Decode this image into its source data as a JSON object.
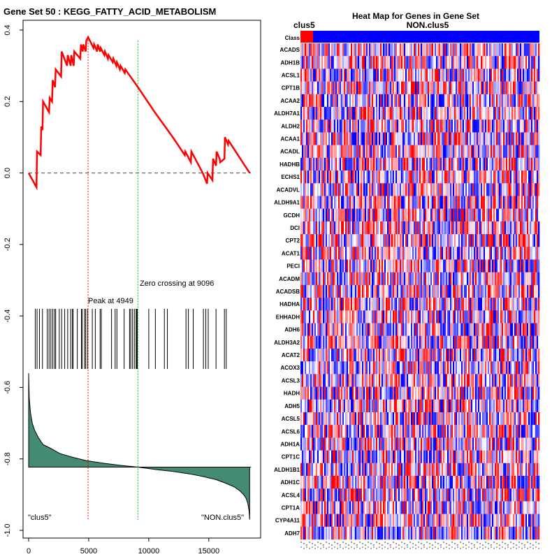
{
  "left_panel": {
    "title": "Gene Set  50 : KEGG_FATTY_ACID_METABOLISM",
    "peak_label": "Peak at 4949",
    "zero_label": "Zero crossing at 9096",
    "left_label": "\"clus5\"",
    "right_label": "\"NON.clus5\""
  },
  "right_panel": {
    "title": "Heat Map for Genes in Gene Set",
    "class_row_label": "Class",
    "group_a": "clus5",
    "group_b": "NON.clus5"
  },
  "colors": {
    "es_line": "#ff0000",
    "peak_line": "#ff0000",
    "zero_line": "#00bb00",
    "metric_fill": "#458b74",
    "class_a": "#ff0000",
    "class_b": "#0000ff"
  },
  "chart_data": {
    "type": "line",
    "title": "Gene Set  50 : KEGG_FATTY_ACID_METABOLISM",
    "xlim": [
      0,
      18500
    ],
    "ylim": [
      -1.0,
      0.4
    ],
    "x_ticks": [
      0,
      5000,
      10000,
      15000
    ],
    "y_ticks": [
      0.4,
      0.2,
      0.0,
      -0.2,
      -0.4,
      -0.6,
      -0.8,
      -1.0
    ],
    "x_tick_labels": [
      "0",
      "5000",
      "10000",
      "15000"
    ],
    "y_tick_labels": [
      "0.4",
      "0.2",
      "0.0",
      "-0.2",
      "-0.4",
      "-0.6",
      "-0.8",
      "-1.0"
    ],
    "peak_x": 4949,
    "zero_crossing_x": 9096,
    "enrichment_score": {
      "x": [
        0,
        650,
        700,
        1000,
        1050,
        1150,
        1200,
        1700,
        1750,
        1950,
        2000,
        2200,
        2250,
        2700,
        2750,
        3200,
        3250,
        3500,
        3550,
        3750,
        3800,
        4300,
        4350,
        4500,
        4550,
        4750,
        4800,
        4949,
        5400,
        5450,
        5700,
        5750,
        5950,
        6000,
        6300,
        6350,
        6600,
        6650,
        7000,
        7050,
        7300,
        7350,
        7600,
        7650,
        8000,
        8050,
        9096,
        10500,
        12000,
        13000,
        13050,
        13500,
        13550,
        14500,
        14850,
        14900,
        15300,
        15350,
        15600,
        15650,
        15900,
        15950,
        16300,
        16350,
        16600,
        16650,
        18400
      ],
      "y": [
        0.0,
        -0.04,
        0.06,
        0.05,
        0.13,
        0.12,
        0.2,
        0.17,
        0.21,
        0.2,
        0.26,
        0.24,
        0.29,
        0.27,
        0.34,
        0.3,
        0.33,
        0.3,
        0.33,
        0.3,
        0.34,
        0.32,
        0.36,
        0.34,
        0.36,
        0.34,
        0.37,
        0.38,
        0.35,
        0.36,
        0.34,
        0.36,
        0.34,
        0.35,
        0.33,
        0.34,
        0.32,
        0.33,
        0.31,
        0.32,
        0.3,
        0.31,
        0.29,
        0.3,
        0.28,
        0.29,
        0.24,
        0.17,
        0.1,
        0.05,
        0.06,
        0.03,
        0.06,
        0.0,
        -0.03,
        0.0,
        -0.02,
        0.04,
        0.02,
        0.06,
        0.04,
        0.03,
        0.04,
        0.1,
        0.08,
        0.09,
        0.0
      ]
    },
    "hit_positions": [
      550,
      700,
      900,
      1150,
      1550,
      1700,
      1850,
      2000,
      2150,
      2250,
      2550,
      2750,
      3000,
      3250,
      3500,
      3650,
      3700,
      4050,
      4400,
      4450,
      4650,
      4750,
      4900,
      5300,
      5550,
      5950,
      6050,
      6900,
      7200,
      7350,
      7950,
      8400,
      8500,
      8650,
      8800,
      8950,
      9000,
      9050,
      10000,
      10550,
      11300,
      11550,
      13100,
      13300,
      13700,
      14550,
      14750,
      14950,
      15600,
      16300,
      16450
    ],
    "ranked_metric": {
      "x": [
        0,
        50,
        150,
        300,
        500,
        800,
        1200,
        1800,
        2600,
        3600,
        4800,
        6200,
        7600,
        9096,
        10600,
        12000,
        13400,
        14600,
        15600,
        16400,
        17100,
        17600,
        17900,
        18100,
        18250,
        18350,
        18400
      ],
      "y": [
        -0.56,
        -0.63,
        -0.67,
        -0.7,
        -0.72,
        -0.74,
        -0.76,
        -0.77,
        -0.785,
        -0.795,
        -0.805,
        -0.812,
        -0.818,
        -0.823,
        -0.83,
        -0.835,
        -0.842,
        -0.85,
        -0.858,
        -0.868,
        -0.878,
        -0.89,
        -0.9,
        -0.91,
        -0.925,
        -0.945,
        -0.97
      ]
    }
  },
  "heatmap": {
    "genes": [
      "ACADS",
      "ADH1B",
      "ACSL1",
      "CPT1B",
      "ACAA2",
      "ALDH7A1",
      "ALDH2",
      "ACAA1",
      "ACADL",
      "HADHB",
      "ECHS1",
      "ACADVL",
      "ALDH9A1",
      "GCDH",
      "DCI",
      "CPT2",
      "ACAT1",
      "PECI",
      "ACADM",
      "ACADSB",
      "HADHA",
      "EHHADH",
      "ADH6",
      "ALDH3A2",
      "ACAT2",
      "ACOX3",
      "ACSL3",
      "HADH",
      "ADH5",
      "ACSL5",
      "ACSL6",
      "ADH1A",
      "CPT1C",
      "ALDH1B1",
      "ADH1C",
      "ACSL4",
      "CPT1A",
      "CYP4A11",
      "ADH7"
    ]
  }
}
